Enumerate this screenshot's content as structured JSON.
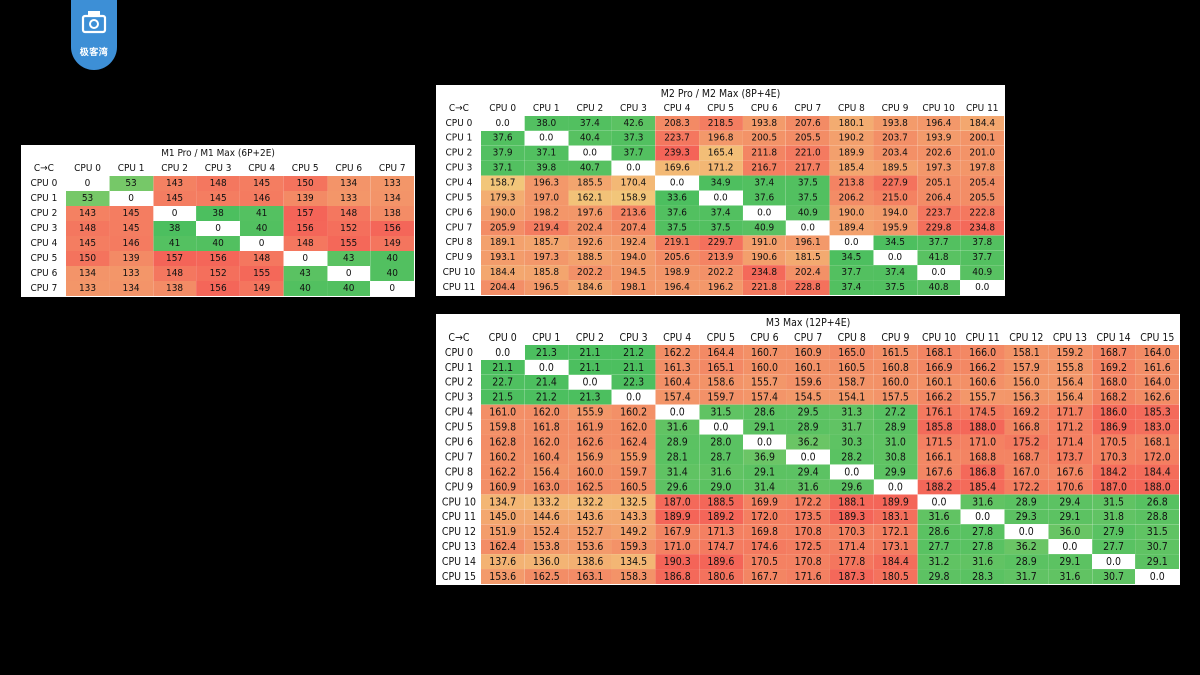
{
  "logo": {
    "text": "极客湾"
  },
  "colors": {
    "green": "#4cbf5f",
    "yellow": "#f2e183",
    "red": "#f46458",
    "white": "#ffffff"
  },
  "tables": [
    {
      "id": "m1",
      "title": "M1 Pro / M1 Max (6P+2E)",
      "corner": "C→C",
      "columns": [
        "CPU 0",
        "CPU 1",
        "CPU 2",
        "CPU 3",
        "CPU 4",
        "CPU 5",
        "CPU 6",
        "CPU 7"
      ],
      "rows": [
        {
          "label": "CPU 0",
          "values": [
            "0",
            "53",
            "143",
            "148",
            "145",
            "150",
            "134",
            "133"
          ]
        },
        {
          "label": "CPU 1",
          "values": [
            "53",
            "0",
            "145",
            "145",
            "146",
            "139",
            "133",
            "134"
          ]
        },
        {
          "label": "CPU 2",
          "values": [
            "143",
            "145",
            "0",
            "38",
            "41",
            "157",
            "148",
            "138"
          ]
        },
        {
          "label": "CPU 3",
          "values": [
            "148",
            "145",
            "38",
            "0",
            "40",
            "156",
            "152",
            "156"
          ]
        },
        {
          "label": "CPU 4",
          "values": [
            "145",
            "146",
            "41",
            "40",
            "0",
            "148",
            "155",
            "149"
          ]
        },
        {
          "label": "CPU 5",
          "values": [
            "150",
            "139",
            "157",
            "156",
            "148",
            "0",
            "43",
            "40"
          ]
        },
        {
          "label": "CPU 6",
          "values": [
            "134",
            "133",
            "148",
            "152",
            "155",
            "43",
            "0",
            "40"
          ]
        },
        {
          "label": "CPU 7",
          "values": [
            "133",
            "134",
            "138",
            "156",
            "149",
            "40",
            "40",
            "0"
          ]
        }
      ]
    },
    {
      "id": "m2",
      "title": "M2 Pro / M2 Max (8P+4E)",
      "corner": "C→C",
      "columns": [
        "CPU 0",
        "CPU 1",
        "CPU 2",
        "CPU 3",
        "CPU 4",
        "CPU 5",
        "CPU 6",
        "CPU 7",
        "CPU 8",
        "CPU 9",
        "CPU 10",
        "CPU 11"
      ],
      "rows": [
        {
          "label": "CPU 0",
          "values": [
            "0.0",
            "38.0",
            "37.4",
            "42.6",
            "208.3",
            "218.5",
            "193.8",
            "207.6",
            "180.1",
            "193.8",
            "196.4",
            "184.4"
          ]
        },
        {
          "label": "CPU 1",
          "values": [
            "37.6",
            "0.0",
            "40.4",
            "37.3",
            "223.7",
            "196.8",
            "200.5",
            "205.5",
            "190.2",
            "203.7",
            "193.9",
            "200.1"
          ]
        },
        {
          "label": "CPU 2",
          "values": [
            "37.9",
            "37.1",
            "0.0",
            "37.7",
            "239.3",
            "165.4",
            "211.8",
            "221.0",
            "189.9",
            "203.4",
            "202.6",
            "201.0"
          ]
        },
        {
          "label": "CPU 3",
          "values": [
            "37.1",
            "39.8",
            "40.7",
            "0.0",
            "169.6",
            "171.2",
            "216.7",
            "217.7",
            "185.4",
            "189.5",
            "197.3",
            "197.8"
          ]
        },
        {
          "label": "CPU 4",
          "values": [
            "158.7",
            "196.3",
            "185.5",
            "170.4",
            "0.0",
            "34.9",
            "37.4",
            "37.5",
            "213.8",
            "227.9",
            "205.1",
            "205.4"
          ]
        },
        {
          "label": "CPU 5",
          "values": [
            "179.3",
            "197.0",
            "162.1",
            "158.9",
            "33.6",
            "0.0",
            "37.6",
            "37.5",
            "206.2",
            "215.0",
            "206.4",
            "205.5"
          ]
        },
        {
          "label": "CPU 6",
          "values": [
            "190.0",
            "198.2",
            "197.6",
            "213.6",
            "37.6",
            "37.4",
            "0.0",
            "40.9",
            "190.0",
            "194.0",
            "223.7",
            "222.8"
          ]
        },
        {
          "label": "CPU 7",
          "values": [
            "205.9",
            "219.4",
            "202.4",
            "207.4",
            "37.5",
            "37.5",
            "40.9",
            "0.0",
            "189.4",
            "195.9",
            "229.8",
            "234.8"
          ]
        },
        {
          "label": "CPU 8",
          "values": [
            "189.1",
            "185.7",
            "192.6",
            "192.4",
            "219.1",
            "229.7",
            "191.0",
            "196.1",
            "0.0",
            "34.5",
            "37.7",
            "37.8"
          ]
        },
        {
          "label": "CPU 9",
          "values": [
            "193.1",
            "197.3",
            "188.5",
            "194.0",
            "205.6",
            "213.9",
            "190.6",
            "181.5",
            "34.5",
            "0.0",
            "41.8",
            "37.7"
          ]
        },
        {
          "label": "CPU 10",
          "values": [
            "184.4",
            "185.8",
            "202.2",
            "194.5",
            "198.9",
            "202.2",
            "234.8",
            "202.4",
            "37.7",
            "37.4",
            "0.0",
            "40.9"
          ]
        },
        {
          "label": "CPU 11",
          "values": [
            "204.4",
            "196.5",
            "184.6",
            "198.1",
            "196.4",
            "196.2",
            "221.8",
            "228.8",
            "37.4",
            "37.5",
            "40.8",
            "0.0"
          ]
        }
      ]
    },
    {
      "id": "m3",
      "title": "M3 Max (12P+4E)",
      "corner": "C→C",
      "columns": [
        "CPU 0",
        "CPU 1",
        "CPU 2",
        "CPU 3",
        "CPU 4",
        "CPU 5",
        "CPU 6",
        "CPU 7",
        "CPU 8",
        "CPU 9",
        "CPU 10",
        "CPU 11",
        "CPU 12",
        "CPU 13",
        "CPU 14",
        "CPU 15"
      ],
      "rows": [
        {
          "label": "CPU 0",
          "values": [
            "0.0",
            "21.3",
            "21.1",
            "21.2",
            "162.2",
            "164.4",
            "160.7",
            "160.9",
            "165.0",
            "161.5",
            "168.1",
            "166.0",
            "158.1",
            "159.2",
            "168.7",
            "164.0"
          ]
        },
        {
          "label": "CPU 1",
          "values": [
            "21.1",
            "0.0",
            "21.1",
            "21.1",
            "161.3",
            "165.1",
            "160.0",
            "160.1",
            "160.5",
            "160.8",
            "166.9",
            "166.2",
            "157.9",
            "155.8",
            "169.2",
            "161.6"
          ]
        },
        {
          "label": "CPU 2",
          "values": [
            "22.7",
            "21.4",
            "0.0",
            "22.3",
            "160.4",
            "158.6",
            "155.7",
            "159.6",
            "158.7",
            "160.0",
            "160.1",
            "160.6",
            "156.0",
            "156.4",
            "168.0",
            "164.0"
          ]
        },
        {
          "label": "CPU 3",
          "values": [
            "21.5",
            "21.2",
            "21.3",
            "0.0",
            "157.4",
            "159.7",
            "157.4",
            "154.5",
            "154.1",
            "157.5",
            "166.2",
            "155.7",
            "156.3",
            "156.4",
            "168.2",
            "162.6"
          ]
        },
        {
          "label": "CPU 4",
          "values": [
            "161.0",
            "162.0",
            "155.9",
            "160.2",
            "0.0",
            "31.5",
            "28.6",
            "29.5",
            "31.3",
            "27.2",
            "176.1",
            "174.5",
            "169.2",
            "171.7",
            "186.0",
            "185.3"
          ]
        },
        {
          "label": "CPU 5",
          "values": [
            "159.8",
            "161.8",
            "161.9",
            "162.0",
            "31.6",
            "0.0",
            "29.1",
            "28.9",
            "31.7",
            "28.9",
            "185.8",
            "188.0",
            "166.8",
            "171.2",
            "186.9",
            "183.0"
          ]
        },
        {
          "label": "CPU 6",
          "values": [
            "162.8",
            "162.0",
            "162.6",
            "162.4",
            "28.9",
            "28.0",
            "0.0",
            "36.2",
            "30.3",
            "31.0",
            "171.5",
            "171.0",
            "175.2",
            "171.4",
            "170.5",
            "168.1"
          ]
        },
        {
          "label": "CPU 7",
          "values": [
            "160.2",
            "160.4",
            "156.9",
            "155.9",
            "28.1",
            "28.7",
            "36.9",
            "0.0",
            "28.2",
            "30.8",
            "166.1",
            "168.8",
            "168.7",
            "173.7",
            "170.3",
            "172.0"
          ]
        },
        {
          "label": "CPU 8",
          "values": [
            "162.2",
            "156.4",
            "160.0",
            "159.7",
            "31.4",
            "31.6",
            "29.1",
            "29.4",
            "0.0",
            "29.9",
            "167.6",
            "186.8",
            "167.0",
            "167.6",
            "184.2",
            "184.4"
          ]
        },
        {
          "label": "CPU 9",
          "values": [
            "160.9",
            "163.0",
            "162.5",
            "160.5",
            "29.6",
            "29.0",
            "31.4",
            "31.6",
            "29.6",
            "0.0",
            "188.2",
            "185.4",
            "172.2",
            "170.6",
            "187.0",
            "188.0"
          ]
        },
        {
          "label": "CPU 10",
          "values": [
            "134.7",
            "133.2",
            "132.2",
            "132.5",
            "187.0",
            "188.5",
            "169.9",
            "172.2",
            "188.1",
            "189.9",
            "0.0",
            "31.6",
            "28.9",
            "29.4",
            "31.5",
            "26.8"
          ]
        },
        {
          "label": "CPU 11",
          "values": [
            "145.0",
            "144.6",
            "143.6",
            "143.3",
            "189.9",
            "189.2",
            "172.0",
            "173.5",
            "189.3",
            "183.1",
            "31.6",
            "0.0",
            "29.3",
            "29.1",
            "31.8",
            "28.8"
          ]
        },
        {
          "label": "CPU 12",
          "values": [
            "151.9",
            "152.4",
            "152.7",
            "149.2",
            "167.9",
            "171.3",
            "169.8",
            "170.8",
            "170.3",
            "172.1",
            "28.6",
            "27.8",
            "0.0",
            "36.0",
            "27.9",
            "31.5"
          ]
        },
        {
          "label": "CPU 13",
          "values": [
            "162.4",
            "153.8",
            "153.6",
            "159.3",
            "171.0",
            "174.7",
            "174.6",
            "172.5",
            "171.4",
            "173.1",
            "27.7",
            "27.8",
            "36.2",
            "0.0",
            "27.7",
            "30.7"
          ]
        },
        {
          "label": "CPU 14",
          "values": [
            "137.6",
            "136.0",
            "138.6",
            "134.5",
            "190.3",
            "189.6",
            "170.5",
            "170.8",
            "177.8",
            "184.4",
            "31.2",
            "31.6",
            "28.9",
            "29.1",
            "0.0",
            "29.1"
          ]
        },
        {
          "label": "CPU 15",
          "values": [
            "153.6",
            "162.5",
            "163.1",
            "158.3",
            "186.8",
            "180.6",
            "167.7",
            "171.6",
            "187.3",
            "180.5",
            "29.8",
            "28.3",
            "31.7",
            "31.6",
            "30.7",
            "0.0"
          ]
        }
      ]
    }
  ],
  "chart_data": [
    {
      "type": "heatmap",
      "title": "M1 Pro / M1 Max (6P+2E)",
      "x": [
        "CPU 0",
        "CPU 1",
        "CPU 2",
        "CPU 3",
        "CPU 4",
        "CPU 5",
        "CPU 6",
        "CPU 7"
      ],
      "y": [
        "CPU 0",
        "CPU 1",
        "CPU 2",
        "CPU 3",
        "CPU 4",
        "CPU 5",
        "CPU 6",
        "CPU 7"
      ],
      "values": "see tables[0].rows"
    },
    {
      "type": "heatmap",
      "title": "M2 Pro / M2 Max (8P+4E)",
      "x": [
        "CPU 0",
        "CPU 1",
        "CPU 2",
        "CPU 3",
        "CPU 4",
        "CPU 5",
        "CPU 6",
        "CPU 7",
        "CPU 8",
        "CPU 9",
        "CPU 10",
        "CPU 11"
      ],
      "y": [
        "CPU 0",
        "CPU 1",
        "CPU 2",
        "CPU 3",
        "CPU 4",
        "CPU 5",
        "CPU 6",
        "CPU 7",
        "CPU 8",
        "CPU 9",
        "CPU 10",
        "CPU 11"
      ],
      "values": "see tables[1].rows"
    },
    {
      "type": "heatmap",
      "title": "M3 Max (12P+4E)",
      "x": [
        "CPU 0",
        "CPU 1",
        "CPU 2",
        "CPU 3",
        "CPU 4",
        "CPU 5",
        "CPU 6",
        "CPU 7",
        "CPU 8",
        "CPU 9",
        "CPU 10",
        "CPU 11",
        "CPU 12",
        "CPU 13",
        "CPU 14",
        "CPU 15"
      ],
      "y": [
        "CPU 0",
        "CPU 1",
        "CPU 2",
        "CPU 3",
        "CPU 4",
        "CPU 5",
        "CPU 6",
        "CPU 7",
        "CPU 8",
        "CPU 9",
        "CPU 10",
        "CPU 11",
        "CPU 12",
        "CPU 13",
        "CPU 14",
        "CPU 15"
      ],
      "values": "see tables[2].rows"
    }
  ]
}
